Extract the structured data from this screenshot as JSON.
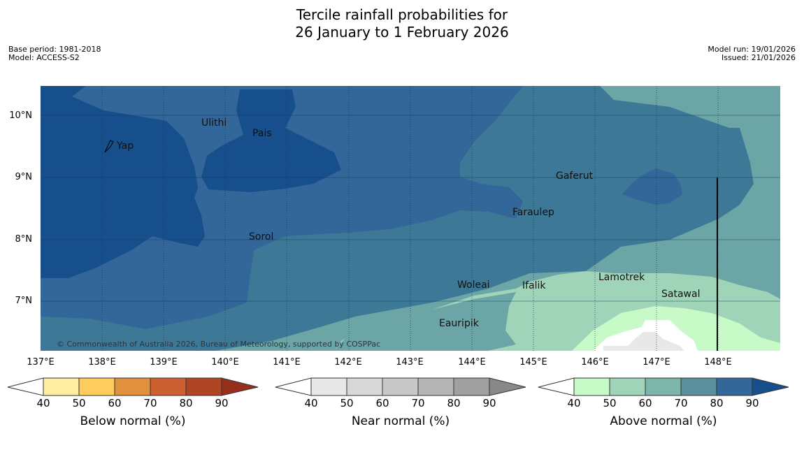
{
  "title": [
    "Tercile rainfall probabilities for",
    "26 January to 1 February 2026"
  ],
  "meta_left": [
    "Base period: 1981-2018",
    "Model: ACCESS-S2"
  ],
  "meta_right": [
    "Model run: 19/01/2026",
    "Issued: 21/01/2026"
  ],
  "map": {
    "copyright": "© Commonwealth of Australia 2026, Bureau of Meteorology, supported by COSPPac",
    "lat_labels": [
      "10°N",
      "9°N",
      "8°N",
      "7°N"
    ],
    "lon_labels": [
      "137°E",
      "138°E",
      "139°E",
      "140°E",
      "141°E",
      "142°E",
      "143°E",
      "144°E",
      "145°E",
      "146°E",
      "147°E",
      "148°E"
    ],
    "places": [
      "Yap",
      "Ulithi",
      "Pais",
      "Sorol",
      "Gaferut",
      "Faraulep",
      "Woleai",
      "Ifalik",
      "Lamotrek",
      "Satawal",
      "Eauripik"
    ]
  },
  "colorbars": [
    {
      "label": "Below normal (%)",
      "colors": [
        "#ffeda0",
        "#fecc5c",
        "#e1913e",
        "#cc6030",
        "#b04525",
        "#97301a"
      ]
    },
    {
      "label": "Near normal (%)",
      "colors": [
        "#e8e8e8",
        "#d8d8d8",
        "#c8c8c8",
        "#b4b4b4",
        "#a0a0a0",
        "#888888"
      ]
    },
    {
      "label": "Above normal (%)",
      "colors": [
        "#c8fac8",
        "#a0d4b8",
        "#7db5aa",
        "#5b8f9e",
        "#336699",
        "#174f8c"
      ]
    }
  ],
  "colorbar_ticks": [
    "40",
    "50",
    "60",
    "70",
    "80",
    "90"
  ]
}
